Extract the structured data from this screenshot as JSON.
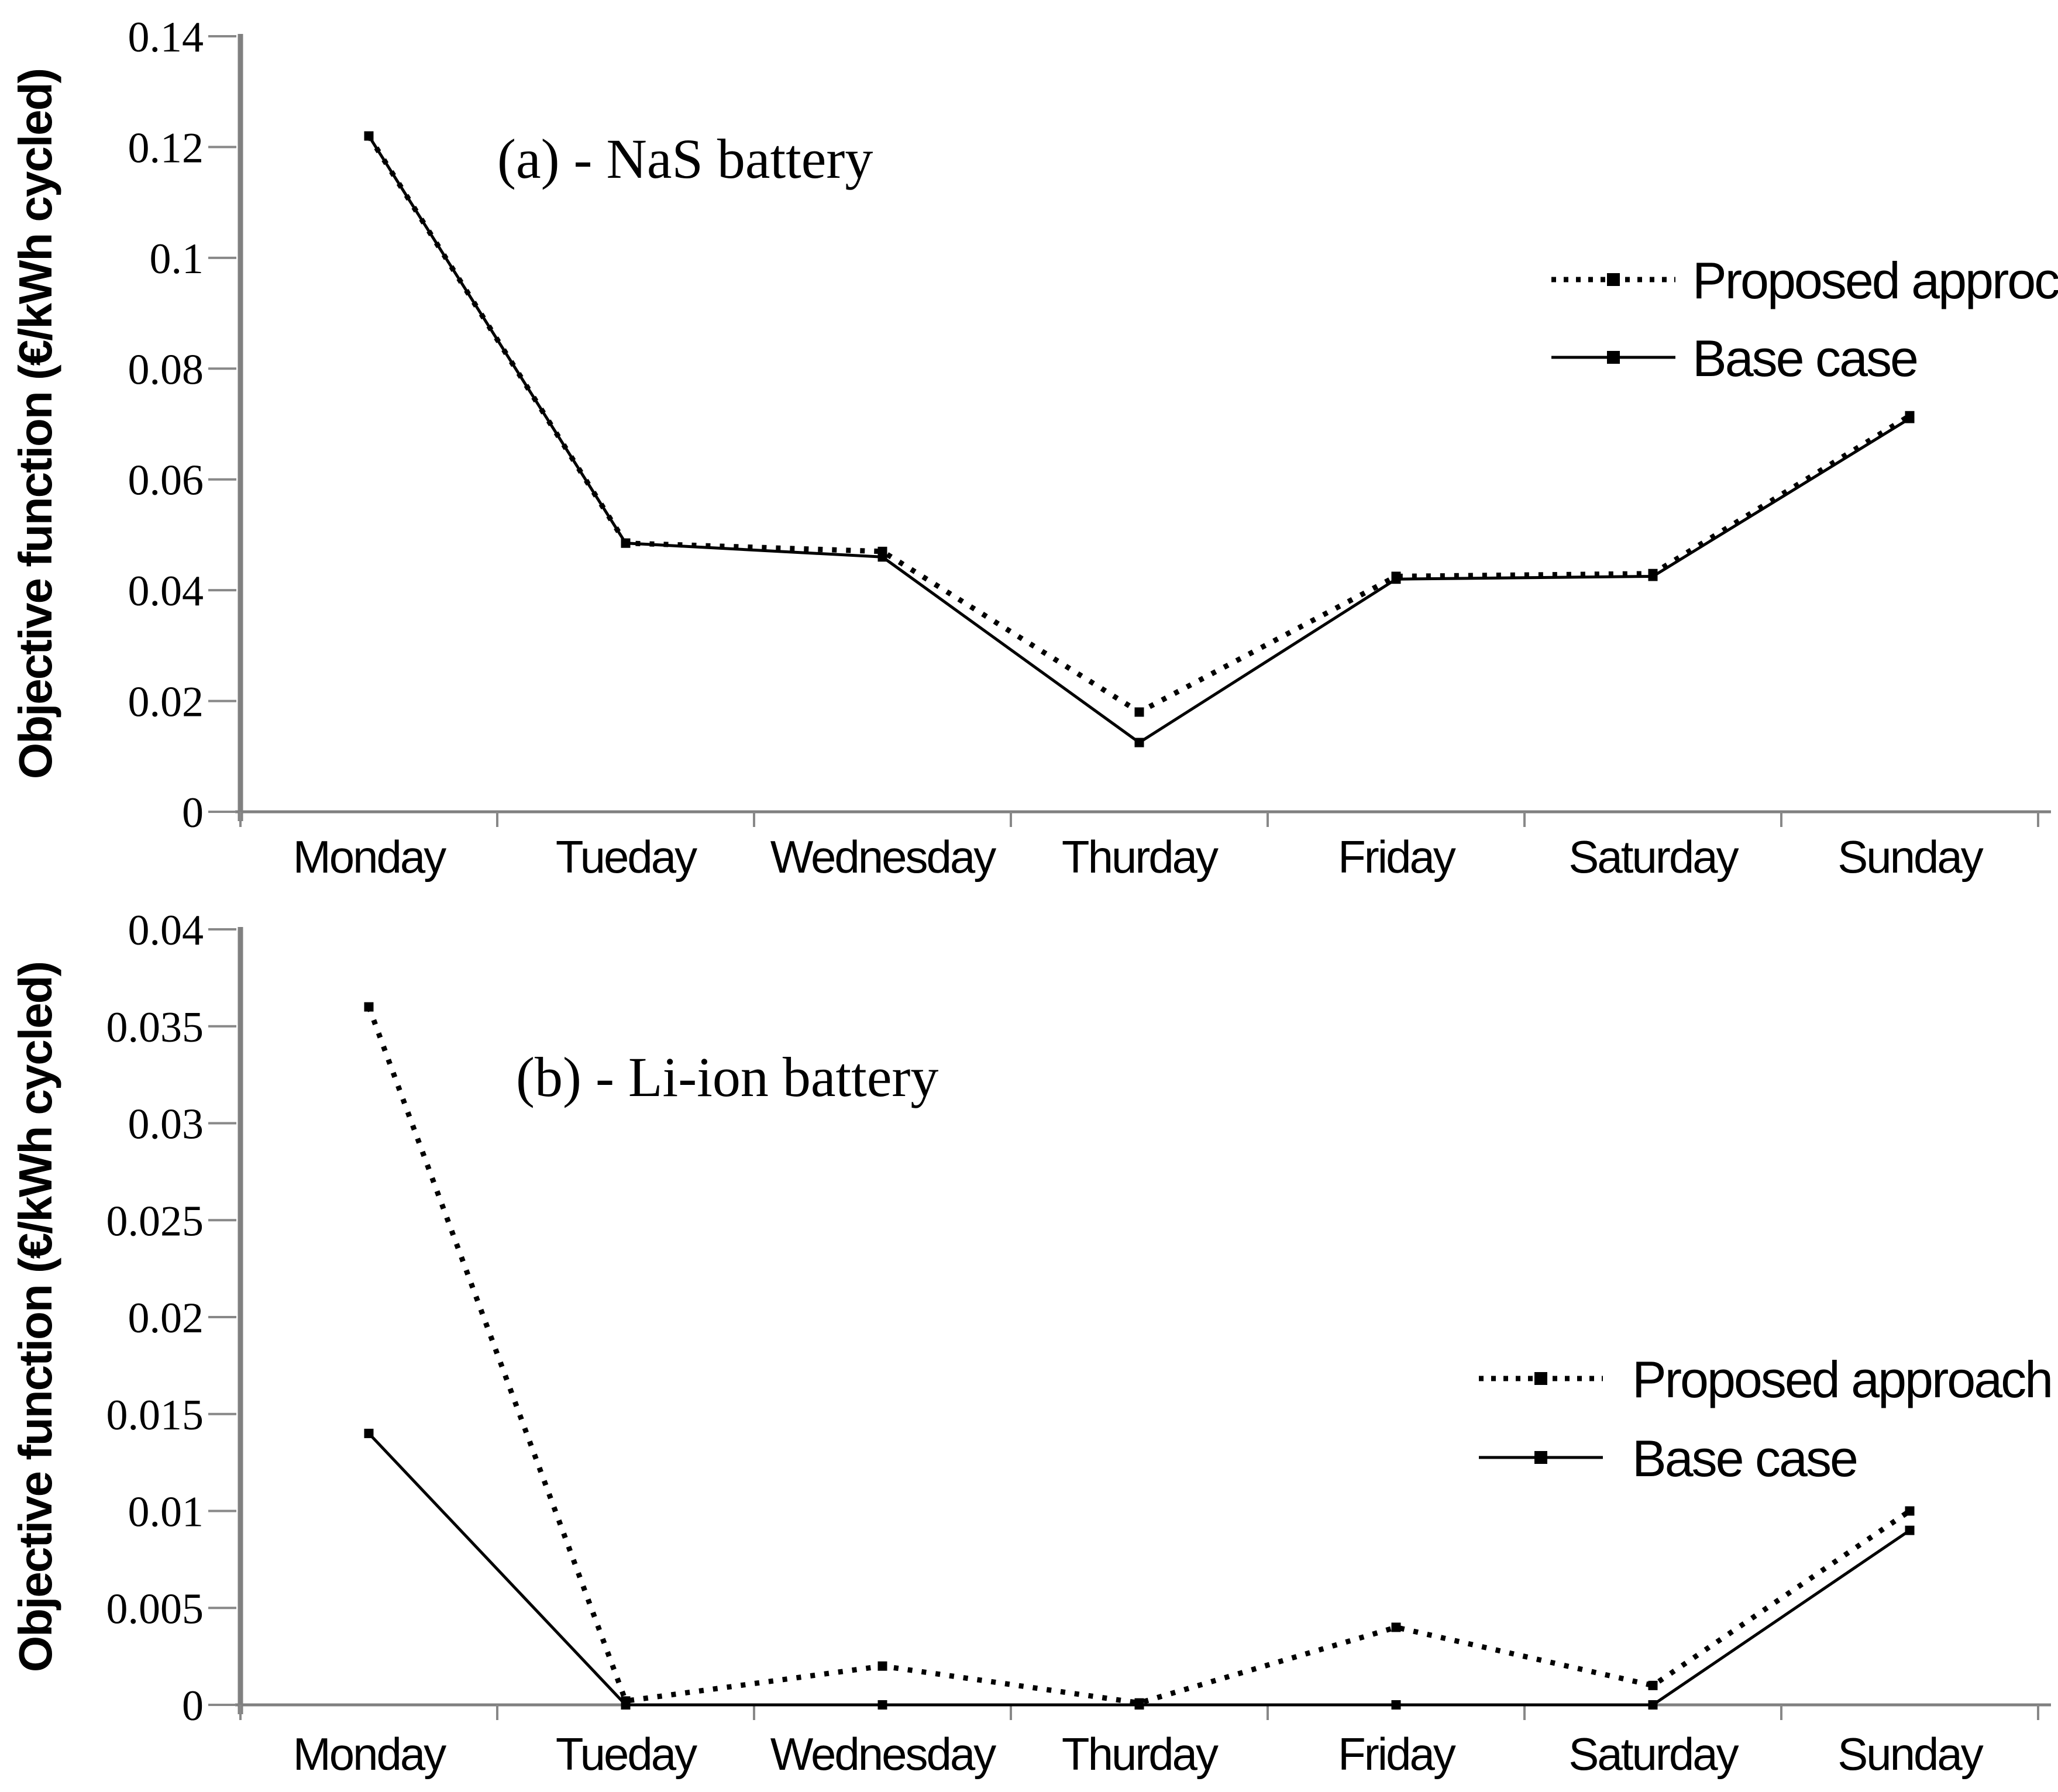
{
  "figure": {
    "background": "#ffffff",
    "axis_color": "#808080",
    "tick_color": "#888888",
    "line_color": "#000000",
    "text_color": "#000000"
  },
  "chart_data": [
    {
      "type": "line",
      "panel": "a",
      "annotation": "(a) - NaS battery",
      "ylabel": "Objective function (€/kWh cycled)",
      "xlabel": "",
      "categories": [
        "Monday",
        "Tueday",
        "Wednesday",
        "Thurday",
        "Friday",
        "Saturday",
        "Sunday"
      ],
      "ylim": [
        0,
        0.14
      ],
      "grid": false,
      "legend_position": "inside-upper-right",
      "yticks": [
        {
          "v": 0.14,
          "label": "0.14"
        },
        {
          "v": 0.12,
          "label": "0.12"
        },
        {
          "v": 0.1,
          "label": "0.1"
        },
        {
          "v": 0.08,
          "label": "0.08"
        },
        {
          "v": 0.06,
          "label": "0.06"
        },
        {
          "v": 0.04,
          "label": "0.04"
        },
        {
          "v": 0.02,
          "label": "0.02"
        },
        {
          "v": 0.0,
          "label": "0"
        }
      ],
      "series": [
        {
          "name": "Base case",
          "line_style": "solid",
          "marker": "square",
          "color": "#000000",
          "values": [
            0.122,
            0.0485,
            0.046,
            0.0125,
            0.042,
            0.0425,
            0.071
          ]
        },
        {
          "name": "Proposed approch",
          "line_style": "dotted",
          "marker": "square",
          "color": "#000000",
          "values": [
            0.122,
            0.0485,
            0.047,
            0.018,
            0.0425,
            0.043,
            0.0715
          ]
        }
      ],
      "legend": [
        {
          "label": "Proposed approch",
          "line_style": "dotted"
        },
        {
          "label": "Base case",
          "line_style": "solid"
        }
      ]
    },
    {
      "type": "line",
      "panel": "b",
      "annotation": "(b) - Li-ion battery",
      "ylabel": "Objective function (€/kWh cycled)",
      "xlabel": "",
      "categories": [
        "Monday",
        "Tueday",
        "Wednesday",
        "Thurday",
        "Friday",
        "Saturday",
        "Sunday"
      ],
      "ylim": [
        0,
        0.04
      ],
      "grid": false,
      "legend_position": "inside-right",
      "yticks": [
        {
          "v": 0.04,
          "label": "0.04"
        },
        {
          "v": 0.035,
          "label": "0.035"
        },
        {
          "v": 0.03,
          "label": "0.03"
        },
        {
          "v": 0.025,
          "label": "0.025"
        },
        {
          "v": 0.02,
          "label": "0.02"
        },
        {
          "v": 0.015,
          "label": "0.015"
        },
        {
          "v": 0.01,
          "label": "0.01"
        },
        {
          "v": 0.005,
          "label": "0.005"
        },
        {
          "v": 0.0,
          "label": "0"
        }
      ],
      "series": [
        {
          "name": "Base case",
          "line_style": "solid",
          "marker": "square",
          "color": "#000000",
          "values": [
            0.014,
            0.0,
            0.0,
            0.0,
            0.0,
            0.0,
            0.009
          ]
        },
        {
          "name": "Proposed approach",
          "line_style": "dotted",
          "marker": "square",
          "color": "#000000",
          "values": [
            0.036,
            0.0002,
            0.002,
            0.0001,
            0.004,
            0.001,
            0.01
          ]
        }
      ],
      "legend": [
        {
          "label": "Proposed approach",
          "line_style": "dotted"
        },
        {
          "label": "Base case",
          "line_style": "solid"
        }
      ]
    }
  ]
}
